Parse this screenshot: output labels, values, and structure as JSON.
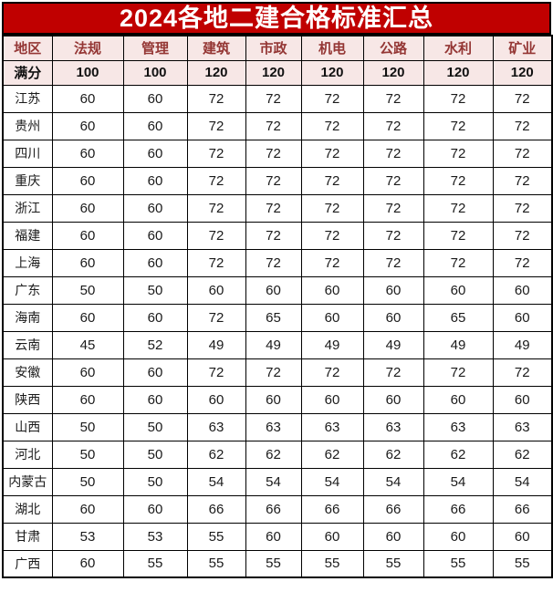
{
  "page": {
    "title": "2024各地二建合格标准汇总"
  },
  "colors": {
    "title_bg": "#C00000",
    "title_text": "#FFFFFF",
    "header_text": "#943634",
    "highlight_bg": "#F7E7E6",
    "grid_border": "#000000",
    "cell_text": "#1A1A1A"
  },
  "table": {
    "columns": [
      "地区",
      "法规",
      "管理",
      "建筑",
      "市政",
      "机电",
      "公路",
      "水利",
      "矿业"
    ],
    "full_marks": {
      "label": "满分",
      "values": [
        100,
        100,
        120,
        120,
        120,
        120,
        120,
        120
      ]
    },
    "rows": [
      {
        "region": "江苏",
        "scores": [
          60,
          60,
          72,
          72,
          72,
          72,
          72,
          72
        ]
      },
      {
        "region": "贵州",
        "scores": [
          60,
          60,
          72,
          72,
          72,
          72,
          72,
          72
        ]
      },
      {
        "region": "四川",
        "scores": [
          60,
          60,
          72,
          72,
          72,
          72,
          72,
          72
        ]
      },
      {
        "region": "重庆",
        "scores": [
          60,
          60,
          72,
          72,
          72,
          72,
          72,
          72
        ]
      },
      {
        "region": "浙江",
        "scores": [
          60,
          60,
          72,
          72,
          72,
          72,
          72,
          72
        ]
      },
      {
        "region": "福建",
        "scores": [
          60,
          60,
          72,
          72,
          72,
          72,
          72,
          72
        ]
      },
      {
        "region": "上海",
        "scores": [
          60,
          60,
          72,
          72,
          72,
          72,
          72,
          72
        ]
      },
      {
        "region": "广东",
        "scores": [
          50,
          50,
          60,
          60,
          60,
          60,
          60,
          60
        ]
      },
      {
        "region": "海南",
        "scores": [
          60,
          60,
          72,
          65,
          60,
          60,
          65,
          60
        ]
      },
      {
        "region": "云南",
        "scores": [
          45,
          52,
          49,
          49,
          49,
          49,
          49,
          49
        ]
      },
      {
        "region": "安徽",
        "scores": [
          60,
          60,
          72,
          72,
          72,
          72,
          72,
          72
        ]
      },
      {
        "region": "陕西",
        "scores": [
          60,
          60,
          60,
          60,
          60,
          60,
          60,
          60
        ]
      },
      {
        "region": "山西",
        "scores": [
          50,
          50,
          63,
          63,
          63,
          63,
          63,
          63
        ]
      },
      {
        "region": "河北",
        "scores": [
          50,
          50,
          62,
          62,
          62,
          62,
          62,
          62
        ]
      },
      {
        "region": "内蒙古",
        "scores": [
          50,
          50,
          54,
          54,
          54,
          54,
          54,
          54
        ]
      },
      {
        "region": "湖北",
        "scores": [
          60,
          60,
          66,
          66,
          66,
          66,
          66,
          66
        ]
      },
      {
        "region": "甘肃",
        "scores": [
          53,
          53,
          55,
          60,
          60,
          60,
          60,
          60
        ]
      },
      {
        "region": "广西",
        "scores": [
          60,
          55,
          55,
          55,
          55,
          55,
          55,
          55
        ]
      }
    ]
  },
  "chart_data": {
    "type": "table",
    "title": "2024各地二建合格标准汇总",
    "columns": [
      "地区",
      "法规",
      "管理",
      "建筑",
      "市政",
      "机电",
      "公路",
      "水利",
      "矿业"
    ],
    "rows": [
      [
        "满分",
        100,
        100,
        120,
        120,
        120,
        120,
        120,
        120
      ],
      [
        "江苏",
        60,
        60,
        72,
        72,
        72,
        72,
        72,
        72
      ],
      [
        "贵州",
        60,
        60,
        72,
        72,
        72,
        72,
        72,
        72
      ],
      [
        "四川",
        60,
        60,
        72,
        72,
        72,
        72,
        72,
        72
      ],
      [
        "重庆",
        60,
        60,
        72,
        72,
        72,
        72,
        72,
        72
      ],
      [
        "浙江",
        60,
        60,
        72,
        72,
        72,
        72,
        72,
        72
      ],
      [
        "福建",
        60,
        60,
        72,
        72,
        72,
        72,
        72,
        72
      ],
      [
        "上海",
        60,
        60,
        72,
        72,
        72,
        72,
        72,
        72
      ],
      [
        "广东",
        50,
        50,
        60,
        60,
        60,
        60,
        60,
        60
      ],
      [
        "海南",
        60,
        60,
        72,
        65,
        60,
        60,
        65,
        60
      ],
      [
        "云南",
        45,
        52,
        49,
        49,
        49,
        49,
        49,
        49
      ],
      [
        "安徽",
        60,
        60,
        72,
        72,
        72,
        72,
        72,
        72
      ],
      [
        "陕西",
        60,
        60,
        60,
        60,
        60,
        60,
        60,
        60
      ],
      [
        "山西",
        50,
        50,
        63,
        63,
        63,
        63,
        63,
        63
      ],
      [
        "河北",
        50,
        50,
        62,
        62,
        62,
        62,
        62,
        62
      ],
      [
        "内蒙古",
        50,
        50,
        54,
        54,
        54,
        54,
        54,
        54
      ],
      [
        "湖北",
        60,
        60,
        66,
        66,
        66,
        66,
        66,
        66
      ],
      [
        "甘肃",
        53,
        53,
        55,
        60,
        60,
        60,
        60,
        60
      ],
      [
        "广西",
        60,
        55,
        55,
        55,
        55,
        55,
        55,
        55
      ]
    ]
  }
}
